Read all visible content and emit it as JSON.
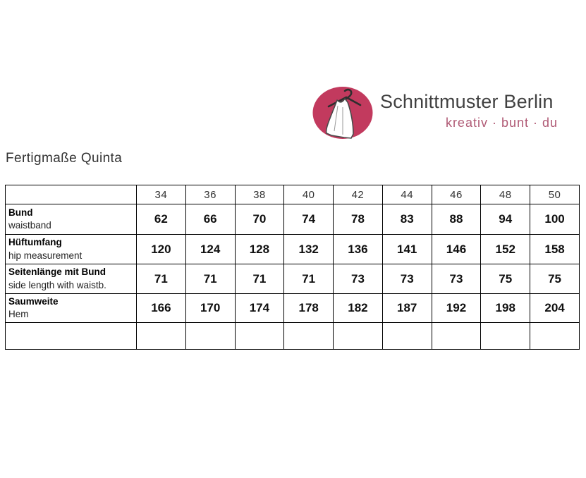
{
  "logo": {
    "brand": "Schnittmuster Berlin",
    "tagline": "kreativ · bunt · du",
    "ellipse_color": "#c23a5e",
    "brand_color": "#414141",
    "tagline_color": "#b05a75",
    "icon": "dress-on-hanger-icon"
  },
  "page_title": "Fertigmaße Quinta",
  "table": {
    "sizes": [
      "34",
      "36",
      "38",
      "40",
      "42",
      "44",
      "46",
      "48",
      "50"
    ],
    "rows": [
      {
        "label_de": "Bund",
        "label_en": "waistband",
        "values": [
          "62",
          "66",
          "70",
          "74",
          "78",
          "83",
          "88",
          "94",
          "100"
        ]
      },
      {
        "label_de": "Hüftumfang",
        "label_en": "hip measurement",
        "values": [
          "120",
          "124",
          "128",
          "132",
          "136",
          "141",
          "146",
          "152",
          "158"
        ]
      },
      {
        "label_de": "Seitenlänge mit Bund",
        "label_en": "side length with waistb.",
        "values": [
          "71",
          "71",
          "71",
          "71",
          "73",
          "73",
          "73",
          "75",
          "75"
        ]
      },
      {
        "label_de": "Saumweite",
        "label_en": "Hem",
        "values": [
          "166",
          "170",
          "174",
          "178",
          "182",
          "187",
          "192",
          "198",
          "204"
        ]
      },
      {
        "label_de": "",
        "label_en": "",
        "values": [
          "",
          "",
          "",
          "",
          "",
          "",
          "",
          "",
          ""
        ]
      }
    ]
  }
}
